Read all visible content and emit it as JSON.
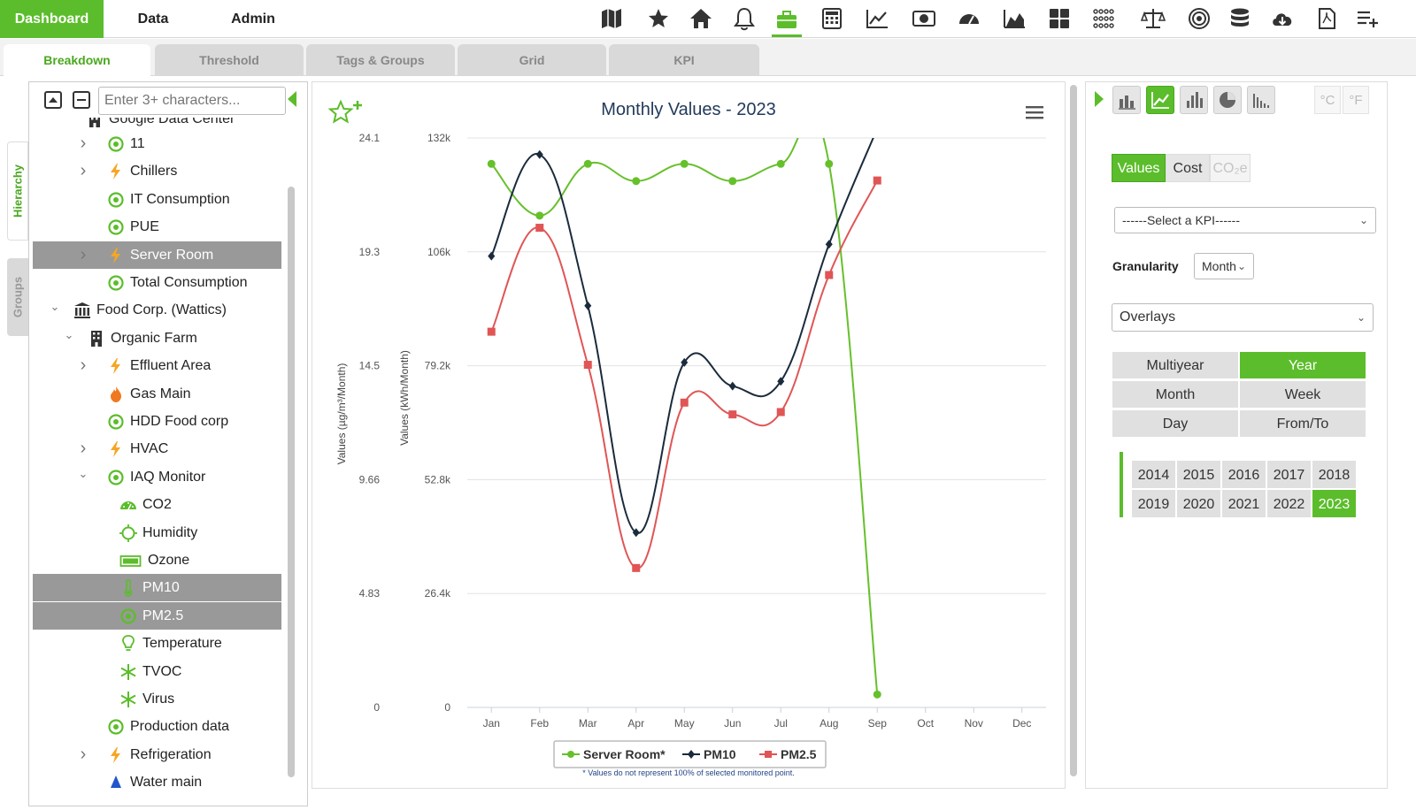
{
  "nav": {
    "tabs": [
      {
        "label": "Dashboard",
        "active": true
      },
      {
        "label": "Data",
        "active": false
      },
      {
        "label": "Admin",
        "active": false
      }
    ],
    "icons": [
      "map-icon",
      "star-icon",
      "home-icon",
      "bell-icon",
      "briefcase-icon",
      "calculator-icon",
      "line-chart-icon",
      "money-icon",
      "gauge-icon",
      "area-chart-icon",
      "grid-icon",
      "dots-grid-icon",
      "scale-icon",
      "target-icon",
      "database-icon",
      "cloud-download-icon",
      "pdf-icon",
      "list-add-icon"
    ],
    "active_icon": "briefcase-icon",
    "accent": "#5bbd2b"
  },
  "subtabs": [
    {
      "label": "Breakdown",
      "active": true
    },
    {
      "label": "Threshold",
      "active": false
    },
    {
      "label": "Tags & Groups",
      "active": false
    },
    {
      "label": "Grid",
      "active": false
    },
    {
      "label": "KPI",
      "active": false
    }
  ],
  "side_tabs": {
    "hierarchy": "Hierarchy",
    "groups": "Groups"
  },
  "tree": {
    "search_placeholder": "Enter 3+ characters...",
    "partial_top": "Google Data Center",
    "items": [
      {
        "label": "11",
        "icon": "meter-icon",
        "chev": "right",
        "level": 1,
        "selected": false
      },
      {
        "label": "Chillers",
        "icon": "bolt-icon",
        "chev": "right",
        "level": 1,
        "selected": false
      },
      {
        "label": "IT Consumption",
        "icon": "meter-icon",
        "chev": "",
        "level": 1,
        "selected": false
      },
      {
        "label": "PUE",
        "icon": "meter-icon",
        "chev": "",
        "level": 1,
        "selected": false
      },
      {
        "label": "Server Room",
        "icon": "bolt-icon",
        "chev": "right",
        "level": 1,
        "selected": true
      },
      {
        "label": "Total Consumption",
        "icon": "meter-icon",
        "chev": "",
        "level": 1,
        "selected": false
      },
      {
        "label": "Food Corp. (Wattics)",
        "icon": "bank-icon",
        "chev": "down",
        "level": 0,
        "selected": false
      },
      {
        "label": "Organic Farm",
        "icon": "building-icon",
        "chev": "down",
        "level": 0.5,
        "selected": false
      },
      {
        "label": "Effluent Area",
        "icon": "bolt-icon",
        "chev": "right",
        "level": 1,
        "selected": false
      },
      {
        "label": "Gas Main",
        "icon": "flame-icon",
        "chev": "",
        "level": 1,
        "selected": false
      },
      {
        "label": "HDD Food corp",
        "icon": "meter-icon",
        "chev": "",
        "level": 1,
        "selected": false
      },
      {
        "label": "HVAC",
        "icon": "bolt-icon",
        "chev": "right",
        "level": 1,
        "selected": false
      },
      {
        "label": "IAQ Monitor",
        "icon": "meter-icon",
        "chev": "down",
        "level": 1,
        "selected": false
      },
      {
        "label": "CO2",
        "icon": "gauge-icon",
        "chev": "",
        "level": 2,
        "selected": false
      },
      {
        "label": "Humidity",
        "icon": "sun-icon",
        "chev": "",
        "level": 2,
        "selected": false
      },
      {
        "label": "Ozone",
        "icon": "battery-icon",
        "chev": "",
        "level": 2,
        "selected": false
      },
      {
        "label": "PM10",
        "icon": "thermometer-icon",
        "chev": "",
        "level": 2,
        "selected": true
      },
      {
        "label": "PM2.5",
        "icon": "meter-icon",
        "chev": "",
        "level": 2,
        "selected": true
      },
      {
        "label": "Temperature",
        "icon": "bulb-icon",
        "chev": "",
        "level": 2,
        "selected": false
      },
      {
        "label": "TVOC",
        "icon": "snowflake-icon",
        "chev": "",
        "level": 2,
        "selected": false
      },
      {
        "label": "Virus",
        "icon": "snowflake-icon",
        "chev": "",
        "level": 2,
        "selected": false
      },
      {
        "label": "Production data",
        "icon": "meter-icon",
        "chev": "",
        "level": 1,
        "selected": false
      },
      {
        "label": "Refrigeration",
        "icon": "bolt-icon",
        "chev": "right",
        "level": 1,
        "selected": false
      },
      {
        "label": "Water main",
        "icon": "drop-icon",
        "chev": "",
        "level": 1,
        "selected": false
      }
    ]
  },
  "chart_data": {
    "type": "line",
    "title": "Monthly Values - 2023",
    "categories": [
      "Jan",
      "Feb",
      "Mar",
      "Apr",
      "May",
      "Jun",
      "Jul",
      "Aug",
      "Sep",
      "Oct",
      "Nov",
      "Dec"
    ],
    "y_left": {
      "label": "Values (µg/m³/Month)",
      "ticks": [
        "24.1",
        "19.3",
        "14.5",
        "9.66",
        "4.83",
        "0"
      ],
      "range": [
        0,
        24.1
      ]
    },
    "y_right": {
      "label": "Values (kWh/Month)",
      "ticks": [
        "132k",
        "106k",
        "79.2k",
        "52.8k",
        "26.4k",
        "0"
      ],
      "range": [
        0,
        132000
      ]
    },
    "series": [
      {
        "name": "Server Room*",
        "axis": "kWh",
        "color": "#66c02b",
        "marker": "circle",
        "values": [
          126000,
          114000,
          126000,
          122000,
          126000,
          122000,
          126000,
          126000,
          3000,
          null,
          null,
          null
        ]
      },
      {
        "name": "PM10",
        "axis": "ug",
        "color": "#1a2b3c",
        "marker": "diamond",
        "values": [
          19.1,
          23.4,
          17.0,
          7.4,
          14.6,
          13.6,
          13.8,
          19.6,
          24.5,
          null,
          null,
          null
        ]
      },
      {
        "name": "PM2.5",
        "axis": "ug",
        "color": "#e05555",
        "marker": "square",
        "values": [
          15.9,
          20.3,
          14.5,
          5.9,
          12.9,
          12.4,
          12.5,
          18.3,
          22.3,
          null,
          null,
          null
        ]
      }
    ],
    "footnote": "* Values do not represent 100% of selected monitored point.",
    "grid": true,
    "legend": "bottom-center"
  },
  "right": {
    "chart_types": [
      "bar-chart-icon",
      "line-chart-icon",
      "column-chart-icon",
      "pie-chart-icon",
      "histogram-icon"
    ],
    "active_chart_type": "line-chart-icon",
    "units": [
      "°C",
      "°F"
    ],
    "value_tabs": [
      {
        "label": "Values",
        "active": true,
        "disabled": false
      },
      {
        "label": "Cost",
        "active": false,
        "disabled": false
      },
      {
        "label": "CO₂e",
        "active": false,
        "disabled": true
      }
    ],
    "kpi_select": "------Select a KPI------",
    "granularity_label": "Granularity",
    "granularity_value": "Month",
    "overlays": "Overlays",
    "periods": [
      {
        "label": "Multiyear",
        "active": false
      },
      {
        "label": "Year",
        "active": true
      },
      {
        "label": "Month",
        "active": false
      },
      {
        "label": "Week",
        "active": false
      },
      {
        "label": "Day",
        "active": false
      },
      {
        "label": "From/To",
        "active": false
      }
    ],
    "years": [
      {
        "label": "2014",
        "active": false
      },
      {
        "label": "2015",
        "active": false
      },
      {
        "label": "2016",
        "active": false
      },
      {
        "label": "2017",
        "active": false
      },
      {
        "label": "2018",
        "active": false
      },
      {
        "label": "2019",
        "active": false
      },
      {
        "label": "2020",
        "active": false
      },
      {
        "label": "2021",
        "active": false
      },
      {
        "label": "2022",
        "active": false
      },
      {
        "label": "2023",
        "active": true
      }
    ]
  }
}
